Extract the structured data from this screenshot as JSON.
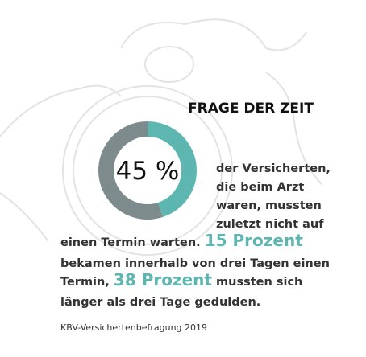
{
  "chart_data": {
    "type": "donut",
    "title": "FRAGE DER ZEIT",
    "values": [
      45,
      55
    ],
    "value_labels": [
      "45 %",
      null
    ],
    "colors": [
      "#5db7b0",
      "#7e8b8d"
    ],
    "body": {
      "lines": [
        [
          {
            "text": "der Versicherten,",
            "highlight": false
          }
        ],
        [
          {
            "text": "die beim Arzt",
            "highlight": false
          }
        ],
        [
          {
            "text": "waren, mussten",
            "highlight": false
          }
        ],
        [
          {
            "text": "zuletzt nicht auf",
            "highlight": false
          }
        ],
        [
          {
            "text": "einen Termin warten. ",
            "highlight": false
          },
          {
            "text": "15 Prozent",
            "highlight": true
          }
        ],
        [
          {
            "text": "bekamen innerhalb von drei Tagen einen",
            "highlight": false
          }
        ],
        [
          {
            "text": "Termin, ",
            "highlight": false
          },
          {
            "text": "38 Prozent",
            "highlight": true
          },
          {
            "text": " mussten sich",
            "highlight": false
          }
        ],
        [
          {
            "text": "länger als drei Tage gedulden.",
            "highlight": false
          }
        ]
      ]
    },
    "source": "KBV-Versichertenbefragung 2019"
  }
}
